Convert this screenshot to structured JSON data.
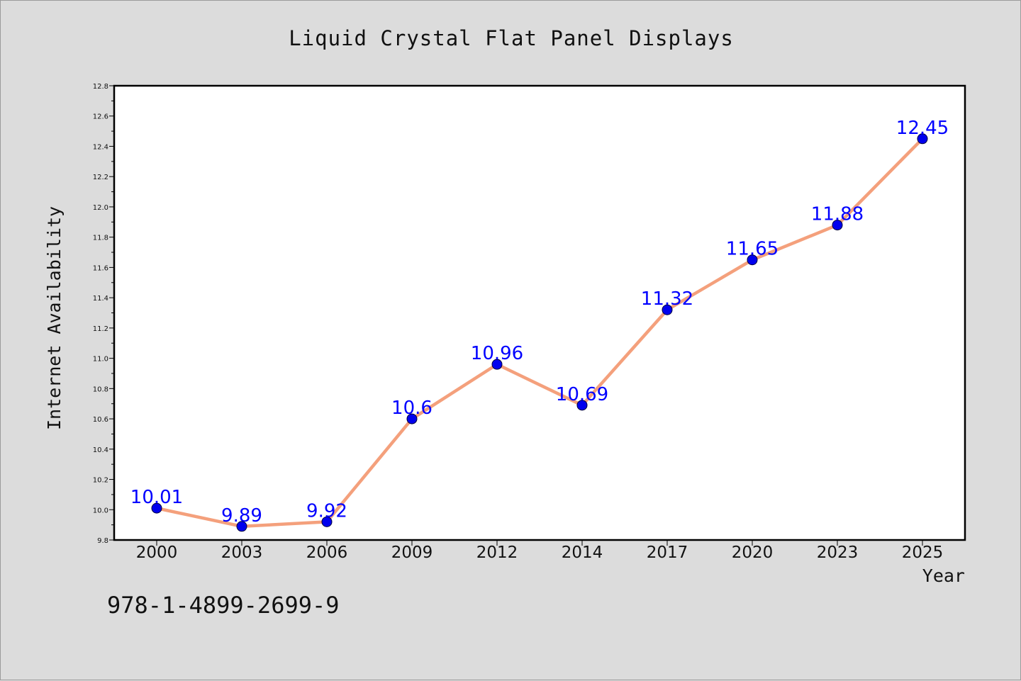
{
  "chart_data": {
    "type": "line",
    "title": "Liquid Crystal Flat Panel Displays",
    "xlabel": "Year",
    "ylabel": "Internet Availability",
    "categories": [
      "2000",
      "2003",
      "2006",
      "2009",
      "2012",
      "2014",
      "2017",
      "2020",
      "2023",
      "2025"
    ],
    "values": [
      10.01,
      9.89,
      9.92,
      10.6,
      10.96,
      10.69,
      11.32,
      11.65,
      11.88,
      12.45
    ],
    "data_labels": [
      "10.01",
      "9.89",
      "9.92",
      "10.6",
      "10.96",
      "10.69",
      "11.32",
      "11.65",
      "11.88",
      "12.45"
    ],
    "ylim": [
      9.8,
      12.8
    ],
    "yticks": [
      "9.8",
      "10.0",
      "10.2",
      "10.4",
      "10.6",
      "10.8",
      "11.0",
      "11.2",
      "11.4",
      "11.6",
      "11.8",
      "12.0",
      "12.2",
      "12.4",
      "12.6",
      "12.8"
    ],
    "grid": false,
    "line_color": "#f4a07c",
    "marker_color": "#0000ee",
    "label_color": "#0000ff"
  },
  "footer": {
    "isbn": "978-1-4899-2699-9"
  }
}
